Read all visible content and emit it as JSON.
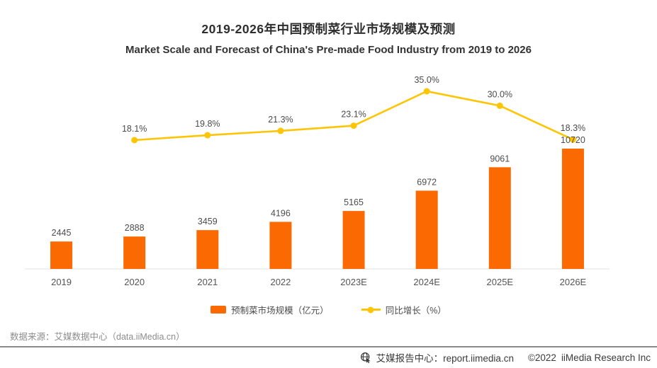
{
  "title": "2019-2026年中国预制菜行业市场规模及预测",
  "subtitle": "Market Scale and Forecast of China's Pre-made Food Industry from 2019 to 2026",
  "chart_data": {
    "type": "bar",
    "subtype": "bar-line-combo",
    "categories": [
      "2019",
      "2020",
      "2021",
      "2022",
      "2023E",
      "2024E",
      "2025E",
      "2026E"
    ],
    "series": [
      {
        "name": "预制菜市场规模（亿元）",
        "type": "bar",
        "values": [
          2445,
          2888,
          3459,
          4196,
          5165,
          6972,
          9061,
          10720
        ],
        "color": "#fb6a02"
      },
      {
        "name": "同比增长（%）",
        "type": "line",
        "values": [
          null,
          18.1,
          19.8,
          21.3,
          23.1,
          35.0,
          30.0,
          18.3
        ],
        "labels": [
          "",
          "18.1%",
          "19.8%",
          "21.3%",
          "23.1%",
          "35.0%",
          "30.0%",
          "18.3%"
        ],
        "color": "#fdc504"
      }
    ],
    "title": "2019-2026年中国预制菜行业市场规模及预测",
    "xlabel": "",
    "ylabel": "",
    "grid": false,
    "legend_position": "bottom",
    "axis_line_color": "#e2e2e2",
    "label_color": "#4c4c4c"
  },
  "source": "数据来源：艾媒数据中心（data.iiMedia.cn）",
  "footer": {
    "icon": "globe-cursor-icon",
    "brand": "艾媒报告中心：report.iimedia.cn",
    "copyright": "©2022",
    "company": "iiMedia Research Inc"
  }
}
